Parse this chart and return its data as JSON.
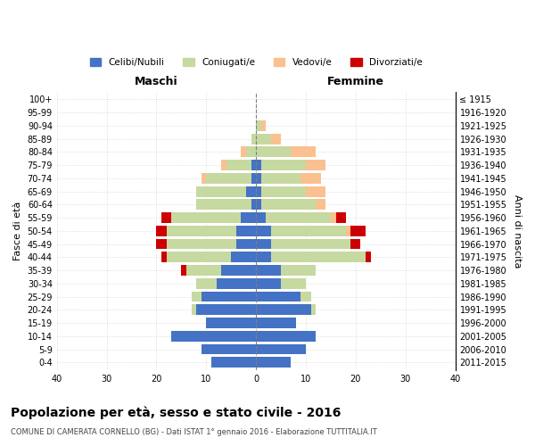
{
  "age_groups": [
    "0-4",
    "5-9",
    "10-14",
    "15-19",
    "20-24",
    "25-29",
    "30-34",
    "35-39",
    "40-44",
    "45-49",
    "50-54",
    "55-59",
    "60-64",
    "65-69",
    "70-74",
    "75-79",
    "80-84",
    "85-89",
    "90-94",
    "95-99",
    "100+"
  ],
  "birth_years": [
    "2011-2015",
    "2006-2010",
    "2001-2005",
    "1996-2000",
    "1991-1995",
    "1986-1990",
    "1981-1985",
    "1976-1980",
    "1971-1975",
    "1966-1970",
    "1961-1965",
    "1956-1960",
    "1951-1955",
    "1946-1950",
    "1941-1945",
    "1936-1940",
    "1931-1935",
    "1926-1930",
    "1921-1925",
    "1916-1920",
    "≤ 1915"
  ],
  "males": {
    "celibe": [
      9,
      11,
      17,
      10,
      12,
      11,
      8,
      7,
      5,
      4,
      4,
      3,
      1,
      2,
      1,
      1,
      0,
      0,
      0,
      0,
      0
    ],
    "coniugato": [
      0,
      0,
      0,
      0,
      1,
      2,
      4,
      7,
      13,
      14,
      14,
      14,
      11,
      10,
      9,
      5,
      2,
      1,
      0,
      0,
      0
    ],
    "vedovo": [
      0,
      0,
      0,
      0,
      0,
      0,
      0,
      0,
      0,
      0,
      0,
      0,
      0,
      0,
      1,
      1,
      1,
      0,
      0,
      0,
      0
    ],
    "divorziato": [
      0,
      0,
      0,
      0,
      0,
      0,
      0,
      1,
      1,
      2,
      2,
      2,
      0,
      0,
      0,
      0,
      0,
      0,
      0,
      0,
      0
    ]
  },
  "females": {
    "nubile": [
      7,
      10,
      12,
      8,
      11,
      9,
      5,
      5,
      3,
      3,
      3,
      2,
      1,
      1,
      1,
      1,
      0,
      0,
      0,
      0,
      0
    ],
    "coniugata": [
      0,
      0,
      0,
      0,
      1,
      2,
      5,
      7,
      19,
      16,
      15,
      13,
      11,
      9,
      8,
      9,
      7,
      3,
      1,
      0,
      0
    ],
    "vedova": [
      0,
      0,
      0,
      0,
      0,
      0,
      0,
      0,
      0,
      0,
      1,
      1,
      2,
      4,
      4,
      4,
      5,
      2,
      1,
      0,
      0
    ],
    "divorziata": [
      0,
      0,
      0,
      0,
      0,
      0,
      0,
      0,
      1,
      2,
      3,
      2,
      0,
      0,
      0,
      0,
      0,
      0,
      0,
      0,
      0
    ]
  },
  "color_celibe": "#4472C4",
  "color_coniugato": "#C6D9A0",
  "color_vedovo": "#FAC090",
  "color_divorziato": "#CC0000",
  "xlim": 40,
  "title": "Popolazione per età, sesso e stato civile - 2016",
  "subtitle": "COMUNE DI CAMERATA CORNELLO (BG) - Dati ISTAT 1° gennaio 2016 - Elaborazione TUTTITALIA.IT",
  "ylabel": "Fasce di età",
  "ylabel_right": "Anni di nascita",
  "legend_labels": [
    "Celibi/Nubili",
    "Coniugati/e",
    "Vedovi/e",
    "Divorziati/e"
  ],
  "maschi_label": "Maschi",
  "femmine_label": "Femmine"
}
